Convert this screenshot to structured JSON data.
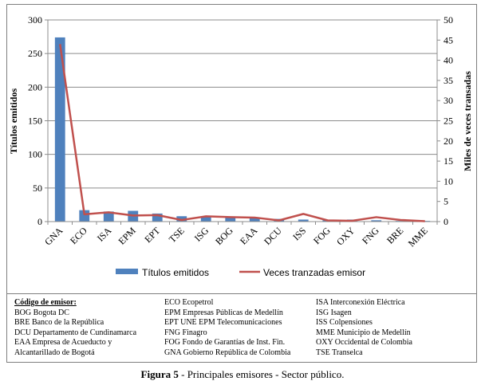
{
  "chart_data": {
    "type": "bar+line",
    "categories": [
      "GNA",
      "ECO",
      "ISA",
      "EPM",
      "EPT",
      "TSE",
      "ISG",
      "BOG",
      "EAA",
      "DCU",
      "ISS",
      "FOG",
      "OXY",
      "FNG",
      "BRE",
      "MME"
    ],
    "series": [
      {
        "name": "Títulos emitidos",
        "type": "bar",
        "axis": "left",
        "color": "#4f81bd",
        "values": [
          274,
          17,
          15,
          16,
          12,
          8,
          7,
          6,
          5,
          4,
          3,
          2,
          3,
          2,
          1,
          1
        ]
      },
      {
        "name": "Veces tranzadas emisor",
        "type": "line",
        "axis": "right",
        "color": "#c0504d",
        "values": [
          44,
          1.8,
          2.3,
          1.5,
          1.6,
          0.4,
          1.3,
          1.1,
          1.0,
          0.3,
          1.9,
          0.3,
          0.2,
          1.1,
          0.4,
          0.1
        ]
      }
    ],
    "ylabel": "Títulos emitidos",
    "y2label": "Miles de veces transadas",
    "ylim": [
      0,
      300
    ],
    "y2lim": [
      0,
      50
    ],
    "yticks": [
      "0",
      "50",
      "100",
      "150",
      "200",
      "250",
      "300"
    ],
    "y2ticks": [
      "0",
      "5",
      "10",
      "15",
      "20",
      "25",
      "30",
      "35",
      "40",
      "45",
      "50"
    ],
    "grid": true,
    "legend_position": "bottom"
  },
  "codes": {
    "heading": "Código de emisor:",
    "col1": [
      "BOG Bogota DC",
      "BRE Banco de la República",
      "DCU Departamento de Cundinamarca",
      "EAA Empresa de Acueducto y",
      "Alcantarillado de Bogotá"
    ],
    "col2": [
      "ECO Ecopetrol",
      "EPM Empresas Públicas de Medellín",
      "EPT UNE EPM Telecomunicaciones",
      "FNG Finagro",
      "FOG Fondo de Garantías de Inst. Fin.",
      "GNA Gobierno República de Colombia"
    ],
    "col3": [
      "ISA Interconexión Eléctrica",
      "ISG Isagen",
      "ISS Colpensiones",
      "MME Municipio de Medellín",
      "OXY Occidental de Colombia",
      "TSE Transelca"
    ]
  },
  "caption": {
    "label": "Figura 5",
    "text": " - Principales emisores - Sector público."
  }
}
